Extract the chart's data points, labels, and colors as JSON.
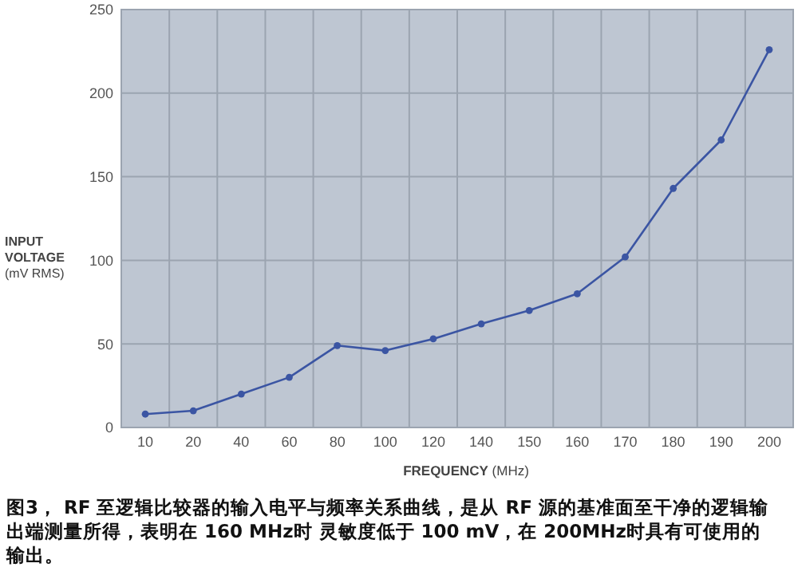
{
  "chart_data": {
    "type": "line",
    "xlabel": "FREQUENCY (MHz)",
    "ylabel": "INPUT VOLTAGE (mV RMS)",
    "categories": [
      "10",
      "20",
      "40",
      "60",
      "80",
      "100",
      "120",
      "140",
      "150",
      "160",
      "170",
      "180",
      "190",
      "200"
    ],
    "series": [
      {
        "color": "#3b55a3",
        "values": [
          8,
          10,
          20,
          30,
          49,
          46,
          53,
          62,
          70,
          80,
          102,
          143,
          172,
          226
        ]
      }
    ],
    "ylim": [
      0,
      250
    ],
    "yticks": [
      0,
      50,
      100,
      150,
      200,
      250
    ],
    "grid": true,
    "marker": "circle",
    "line_style": "solid",
    "annotations": [
      "图3， RF 至逻辑比较器的输入电平与频率关系曲线，是从 RF 源的基准面至干净的逻辑输出端测量所得，表明在 160 MHz时 灵敏度低于 100 mV，在 200MHz时具有可使用的输出。"
    ]
  }
}
